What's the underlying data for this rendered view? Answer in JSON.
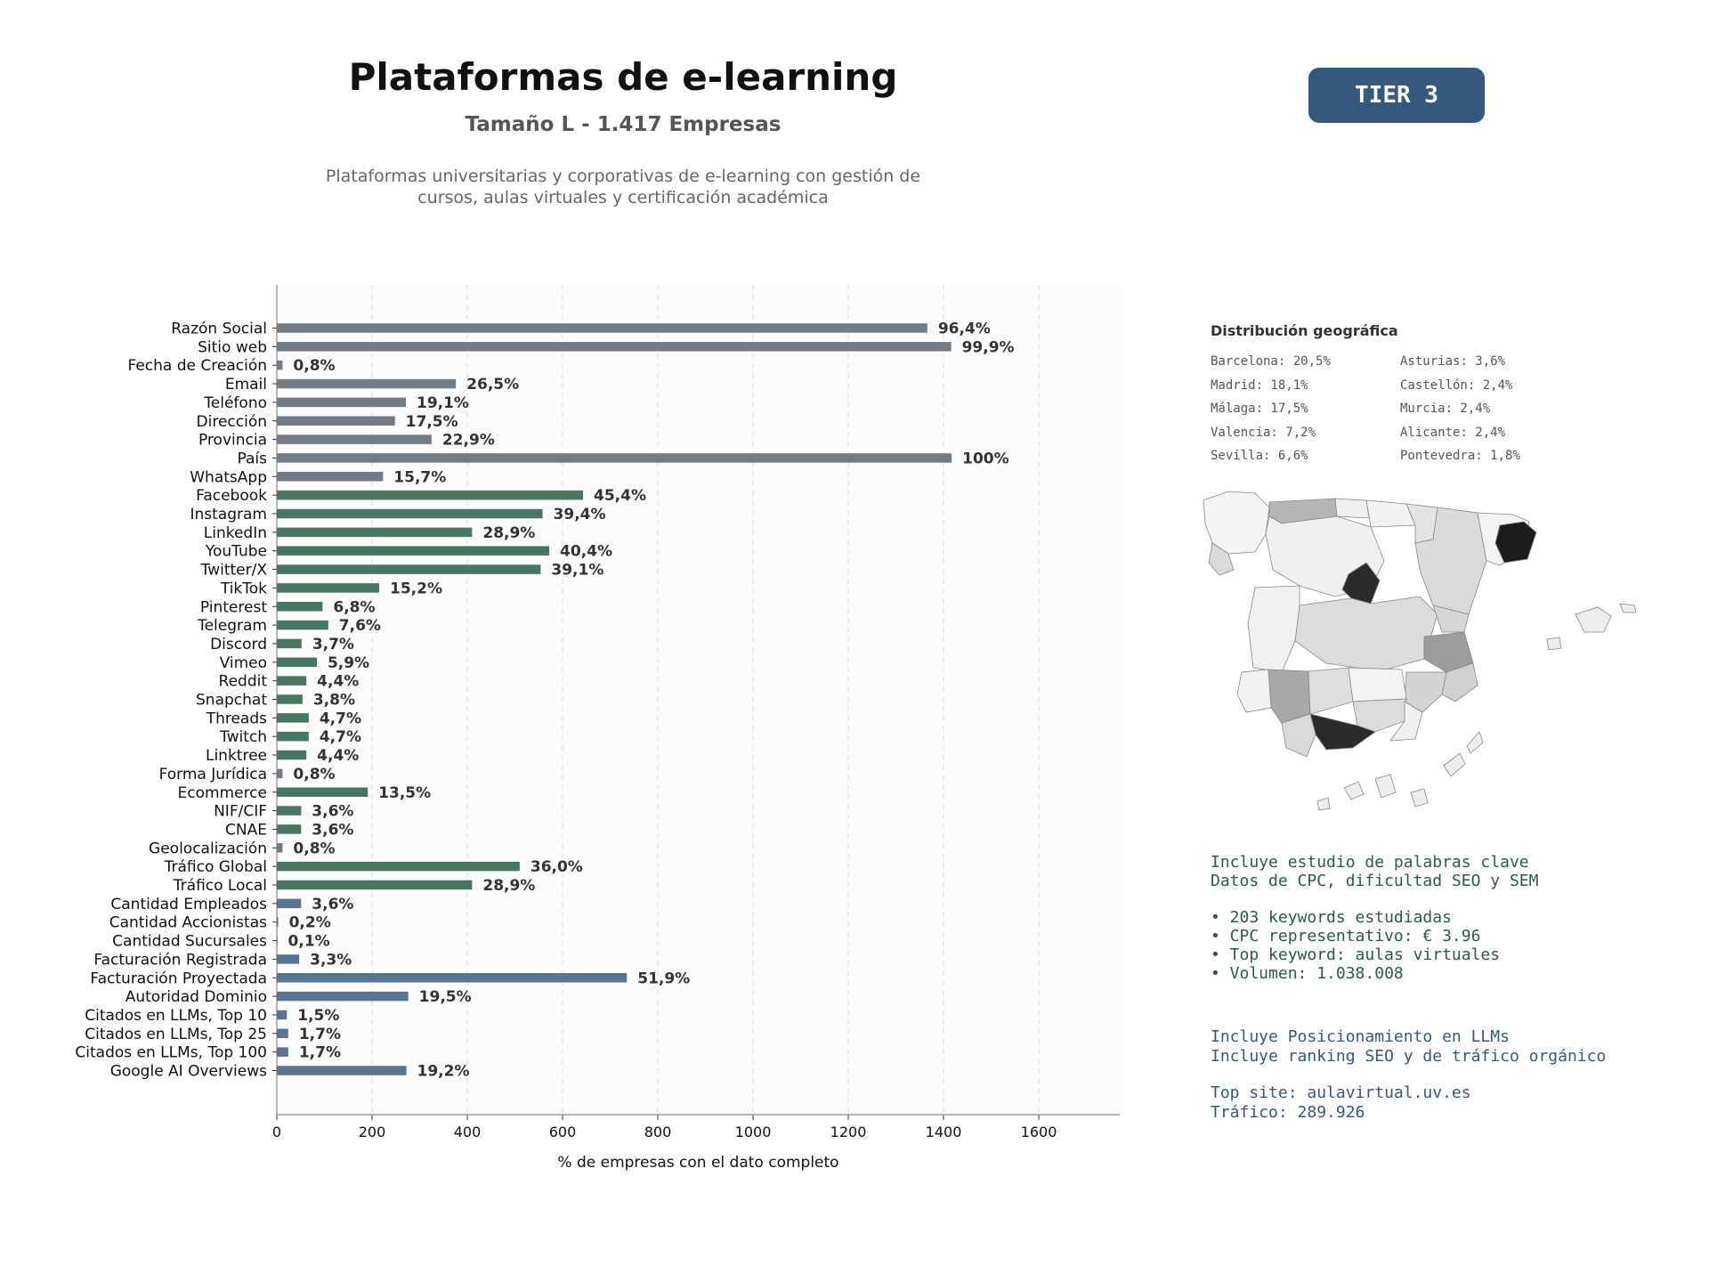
{
  "header": {
    "title": "Plataformas de e-learning",
    "subtitle": "Tamaño L - 1.417 Empresas",
    "description": "Plataformas universitarias y corporativas de e-learning con gestión de cursos, aulas virtuales y certificación académica",
    "tier": "TIER 3"
  },
  "colors": {
    "gray": "#737b85",
    "green": "#477661",
    "blue": "#5a7594",
    "badge": "#34597d"
  },
  "chart_data": {
    "type": "bar",
    "orientation": "horizontal",
    "xlabel": "% de empresas con el dato completo",
    "xlim": [
      0,
      1770
    ],
    "xticks": [
      0,
      200,
      400,
      600,
      800,
      1000,
      1200,
      1400,
      1600
    ],
    "grid": "vertical-dashed",
    "total": 1417,
    "categories": [
      "Razón Social",
      "Sitio web",
      "Fecha de Creación",
      "Email",
      "Teléfono",
      "Dirección",
      "Provincia",
      "País",
      "WhatsApp",
      "Facebook",
      "Instagram",
      "LinkedIn",
      "YouTube",
      "Twitter/X",
      "TikTok",
      "Pinterest",
      "Telegram",
      "Discord",
      "Vimeo",
      "Reddit",
      "Snapchat",
      "Threads",
      "Twitch",
      "Linktree",
      "Forma Jurídica",
      "Ecommerce",
      "NIF/CIF",
      "CNAE",
      "Geolocalización",
      "Tráfico Global",
      "Tráfico Local",
      "Cantidad Empleados",
      "Cantidad Accionistas",
      "Cantidad Sucursales",
      "Facturación Registrada",
      "Facturación Proyectada",
      "Autoridad Dominio",
      "Citados en LLMs, Top 10",
      "Citados en LLMs, Top 25",
      "Citados en LLMs, Top 100",
      "Google AI Overviews"
    ],
    "values": [
      1366,
      1416,
      12,
      376,
      271,
      248,
      325,
      1417,
      223,
      643,
      558,
      410,
      572,
      554,
      215,
      96,
      108,
      52,
      84,
      62,
      54,
      67,
      67,
      62,
      12,
      191,
      51,
      51,
      12,
      510,
      410,
      51,
      3,
      1,
      47,
      735,
      276,
      21,
      24,
      24,
      272
    ],
    "labels": [
      "96,4%",
      "99,9%",
      "0,8%",
      "26,5%",
      "19,1%",
      "17,5%",
      "22,9%",
      "100%",
      "15,7%",
      "45,4%",
      "39,4%",
      "28,9%",
      "40,4%",
      "39,1%",
      "15,2%",
      "6,8%",
      "7,6%",
      "3,7%",
      "5,9%",
      "4,4%",
      "3,8%",
      "4,7%",
      "4,7%",
      "4,4%",
      "0,8%",
      "13,5%",
      "3,6%",
      "3,6%",
      "0,8%",
      "36,0%",
      "28,9%",
      "3,6%",
      "0,2%",
      "0,1%",
      "3,3%",
      "51,9%",
      "19,5%",
      "1,5%",
      "1,7%",
      "1,7%",
      "19,2%"
    ],
    "groups": [
      "gray",
      "gray",
      "gray",
      "gray",
      "gray",
      "gray",
      "gray",
      "gray",
      "gray",
      "green",
      "green",
      "green",
      "green",
      "green",
      "green",
      "green",
      "green",
      "green",
      "green",
      "green",
      "green",
      "green",
      "green",
      "green",
      "gray",
      "green",
      "green",
      "green",
      "gray",
      "green",
      "green",
      "blue",
      "blue",
      "blue",
      "blue",
      "blue",
      "blue",
      "blue",
      "blue",
      "blue",
      "blue"
    ]
  },
  "geo": {
    "title": "Distribución geográfica",
    "items": [
      "Barcelona: 20,5%",
      "Asturias: 3,6%",
      "Madrid: 18,1%",
      "Castellón: 2,4%",
      "Málaga: 17,5%",
      "Murcia: 2,4%",
      "Valencia: 7,2%",
      "Alicante: 2,4%",
      "Sevilla: 6,6%",
      "Pontevedra: 1,8%"
    ]
  },
  "keywords": {
    "line1": "Incluye estudio de palabras clave",
    "line2": "Datos de CPC, dificultad SEO y SEM",
    "bullets": [
      "• 203 keywords estudiadas",
      "• CPC representativo: € 3.96",
      "• Top keyword: aulas virtuales",
      "• Volumen: 1.038.008"
    ]
  },
  "llm": {
    "line1": "Incluye Posicionamiento en LLMs",
    "line2": "Incluye ranking SEO y de tráfico orgánico",
    "top_site": "Top site: aulavirtual.uv.es",
    "traffic": "Tráfico: 289.926"
  }
}
